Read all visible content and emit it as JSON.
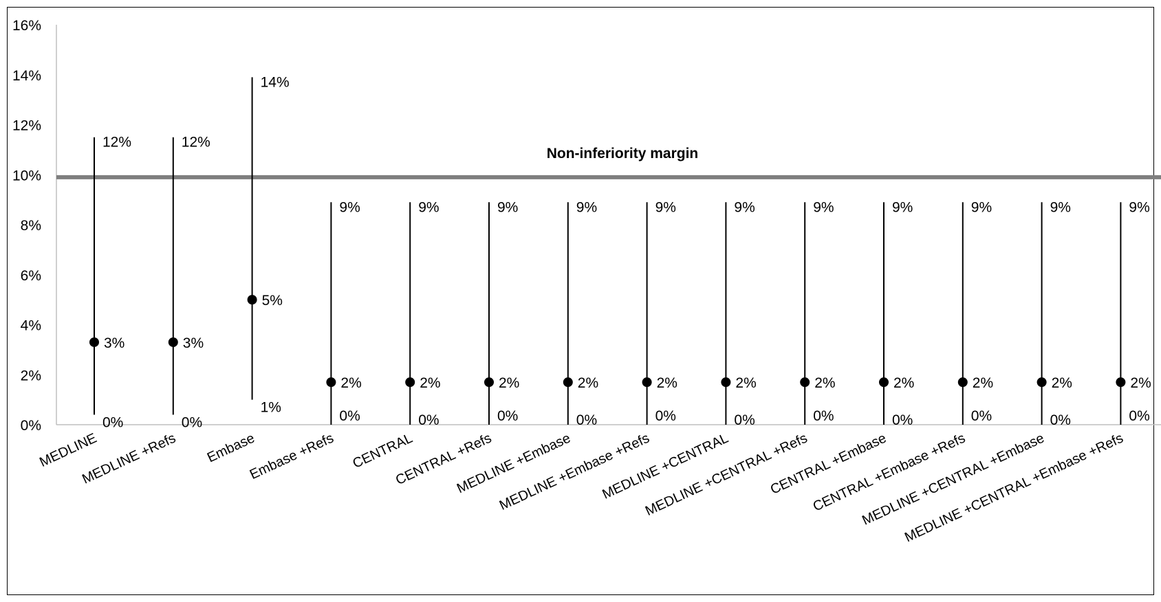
{
  "chart_data": {
    "type": "interval",
    "title": "",
    "xlabel": "",
    "ylabel": "",
    "ylim": [
      0,
      16
    ],
    "ytick_labels": [
      "0%",
      "2%",
      "4%",
      "6%",
      "8%",
      "10%",
      "12%",
      "14%",
      "16%"
    ],
    "ytick_values": [
      0,
      2,
      4,
      6,
      8,
      10,
      12,
      14,
      16
    ],
    "grid": false,
    "categories": [
      "MEDLINE",
      "MEDLINE +Refs",
      "Embase",
      "Embase +Refs",
      "CENTRAL",
      "CENTRAL +Refs",
      "MEDLINE +Embase",
      "MEDLINE +Embase +Refs",
      "MEDLINE +CENTRAL",
      "MEDLINE +CENTRAL +Refs",
      "CENTRAL +Embase",
      "CENTRAL +Embase +Refs",
      "MEDLINE +CENTRAL +Embase",
      "MEDLINE +CENTRAL +Embase +Refs"
    ],
    "estimate": [
      3.3,
      3.3,
      5.0,
      1.7,
      1.7,
      1.7,
      1.7,
      1.7,
      1.7,
      1.7,
      1.7,
      1.7,
      1.7,
      1.7
    ],
    "upper": [
      11.5,
      11.5,
      13.9,
      8.9,
      8.9,
      8.9,
      8.9,
      8.9,
      8.9,
      8.9,
      8.9,
      8.9,
      8.9,
      8.9
    ],
    "lower": [
      0.4,
      0.4,
      1.0,
      0,
      0,
      0,
      0,
      0,
      0,
      0,
      0,
      0,
      0,
      0
    ],
    "estimate_labels": [
      "3%",
      "3%",
      "5%",
      "2%",
      "2%",
      "2%",
      "2%",
      "2%",
      "2%",
      "2%",
      "2%",
      "2%",
      "2%",
      "2%"
    ],
    "upper_labels": [
      "12%",
      "12%",
      "14%",
      "9%",
      "9%",
      "9%",
      "9%",
      "9%",
      "9%",
      "9%",
      "9%",
      "9%",
      "9%",
      "9%"
    ],
    "lower_labels": [
      "0%",
      "0%",
      "1%",
      "0%",
      "0%",
      "0%",
      "0%",
      "0%",
      "0%",
      "0%",
      "0%",
      "0%",
      "0%",
      "0%"
    ],
    "reference_line": {
      "value": 9.9,
      "label": "Non-inferiority margin",
      "color": "#7f7f7f"
    },
    "colors": {
      "marker": "#000000",
      "axis": "#bfbfbf"
    }
  }
}
